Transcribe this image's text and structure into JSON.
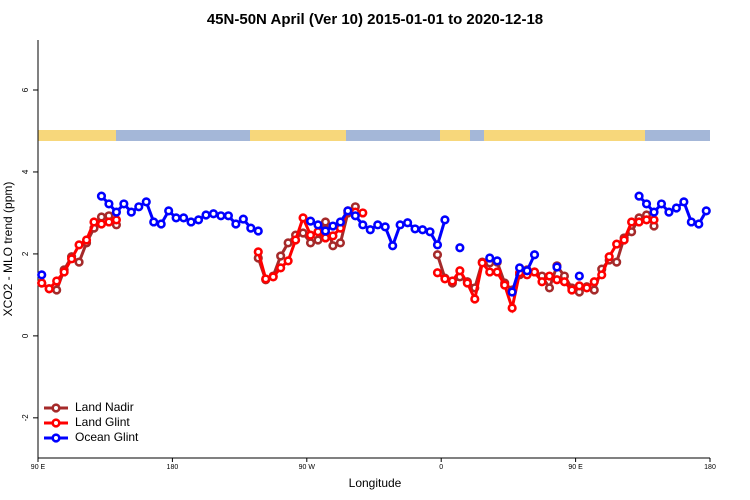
{
  "chart_data": {
    "type": "line",
    "title": "45N-50N April (Ver 10)   2015-01-01 to 2020-12-18",
    "xlabel": "Longitude",
    "ylabel": "XCO2 - MLO trend (ppm)",
    "xlim": [
      90,
      540
    ],
    "xticks": [
      {
        "value": 90,
        "label": "90 E"
      },
      {
        "value": 180,
        "label": "180"
      },
      {
        "value": 270,
        "label": "90 W"
      },
      {
        "value": 360,
        "label": "0"
      },
      {
        "value": 450,
        "label": "90 E"
      },
      {
        "value": 540,
        "label": "180"
      }
    ],
    "ylim": [
      -2.98,
      7.22
    ],
    "yticks": [
      -2,
      0,
      2,
      4,
      6
    ],
    "grid": false,
    "legend": "bottom-left",
    "series": [
      {
        "name": "Land Nadir",
        "color": "#a52a2a",
        "x": [
          92.5,
          97.5,
          102.5,
          107.5,
          112.5,
          117.5,
          122.5,
          127.5,
          132.5,
          137.5,
          142.5,
          147.5,
          237.5,
          242.5,
          247.5,
          252.5,
          257.5,
          262.5,
          267.5,
          272.5,
          277.5,
          282.5,
          287.5,
          292.5,
          297.5,
          302.5,
          307.5,
          357.5,
          362.5,
          367.5,
          372.5,
          377.5,
          382.5,
          387.5,
          392.5,
          397.5,
          402.5,
          407.5,
          412.5,
          417.5,
          422.5,
          427.5,
          432.5,
          437.5,
          442.5,
          447.5,
          452.5,
          457.5,
          462.5,
          467.5,
          472.5,
          477.5,
          482.5,
          487.5,
          492.5,
          497.5,
          502.5
        ],
        "values": [
          1.29,
          1.15,
          1.12,
          1.61,
          1.93,
          1.8,
          2.27,
          2.63,
          2.9,
          2.93,
          2.71,
          null,
          1.9,
          1.37,
          1.46,
          1.95,
          2.27,
          2.46,
          2.51,
          2.27,
          2.34,
          2.78,
          2.2,
          2.27,
          3.0,
          3.15,
          null,
          1.98,
          1.41,
          1.29,
          1.44,
          1.32,
          1.17,
          1.8,
          1.78,
          1.8,
          1.29,
          1.12,
          1.49,
          1.61,
          1.56,
          1.46,
          1.17,
          1.71,
          1.46,
          1.17,
          1.07,
          1.2,
          1.12,
          1.63,
          1.85,
          1.8,
          2.39,
          2.54,
          2.88,
          2.95,
          2.68
        ]
      },
      {
        "name": "Land Glint",
        "color": "#ff0000",
        "x": [
          92.5,
          97.5,
          102.5,
          107.5,
          112.5,
          117.5,
          122.5,
          127.5,
          132.5,
          137.5,
          142.5,
          147.5,
          237.5,
          242.5,
          247.5,
          252.5,
          257.5,
          262.5,
          267.5,
          272.5,
          277.5,
          282.5,
          287.5,
          292.5,
          297.5,
          302.5,
          307.5,
          312.5,
          357.5,
          362.5,
          367.5,
          372.5,
          377.5,
          382.5,
          387.5,
          392.5,
          397.5,
          402.5,
          407.5,
          412.5,
          417.5,
          422.5,
          427.5,
          432.5,
          437.5,
          442.5,
          447.5,
          452.5,
          457.5,
          462.5,
          467.5,
          472.5,
          477.5,
          482.5,
          487.5,
          492.5,
          497.5,
          502.5
        ],
        "values": [
          1.29,
          1.15,
          1.34,
          1.56,
          1.88,
          2.22,
          2.34,
          2.78,
          2.73,
          2.78,
          2.83,
          null,
          2.05,
          1.39,
          1.44,
          1.66,
          1.83,
          2.34,
          2.88,
          2.46,
          2.54,
          2.39,
          2.44,
          2.63,
          3.05,
          3.02,
          3.0,
          null,
          1.54,
          1.39,
          1.34,
          1.59,
          1.29,
          0.9,
          1.78,
          1.56,
          1.56,
          1.24,
          0.68,
          1.54,
          1.49,
          1.56,
          1.32,
          1.46,
          1.37,
          1.32,
          1.12,
          1.22,
          1.17,
          1.32,
          1.49,
          1.93,
          2.24,
          2.34,
          2.78,
          2.78,
          2.83,
          2.83
        ]
      },
      {
        "name": "Ocean Glint",
        "color": "#0000ff",
        "x": [
          92.5,
          97.5,
          132.5,
          137.5,
          142.5,
          147.5,
          152.5,
          157.5,
          162.5,
          167.5,
          172.5,
          177.5,
          182.5,
          187.5,
          192.5,
          197.5,
          202.5,
          207.5,
          212.5,
          217.5,
          222.5,
          227.5,
          232.5,
          237.5,
          242.5,
          272.5,
          277.5,
          282.5,
          287.5,
          292.5,
          297.5,
          302.5,
          307.5,
          312.5,
          317.5,
          322.5,
          327.5,
          332.5,
          337.5,
          342.5,
          347.5,
          352.5,
          357.5,
          362.5,
          367.5,
          372.5,
          377.5,
          392.5,
          397.5,
          402.5,
          407.5,
          412.5,
          417.5,
          422.5,
          427.5,
          437.5,
          442.5,
          452.5,
          457.5,
          492.5,
          497.5,
          502.5,
          507.5,
          512.5,
          517.5,
          522.5,
          527.5,
          532.5,
          537.5
        ],
        "values": [
          1.49,
          null,
          3.41,
          3.22,
          3.02,
          3.22,
          3.02,
          3.15,
          3.27,
          2.78,
          2.73,
          3.05,
          2.88,
          2.88,
          2.78,
          2.83,
          2.95,
          2.98,
          2.93,
          2.93,
          2.73,
          2.85,
          2.63,
          2.56,
          null,
          2.8,
          2.71,
          2.56,
          2.68,
          2.78,
          3.05,
          2.93,
          2.71,
          2.59,
          2.71,
          2.66,
          2.2,
          2.71,
          2.76,
          2.61,
          2.59,
          2.54,
          2.22,
          2.83,
          null,
          2.15,
          null,
          1.9,
          1.83,
          null,
          1.07,
          1.66,
          1.59,
          1.98,
          null,
          1.68,
          null,
          1.46,
          null,
          3.41,
          3.22,
          3.02,
          3.22,
          3.02,
          3.12,
          3.27,
          2.78,
          2.73,
          3.05
        ]
      }
    ]
  }
}
